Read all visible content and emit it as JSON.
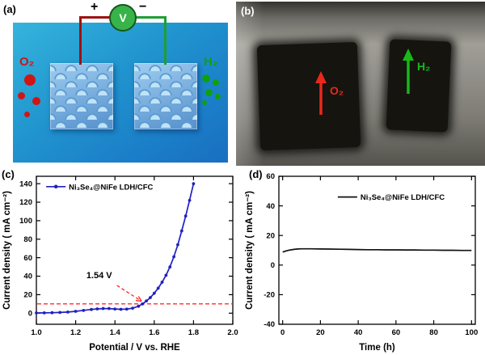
{
  "figure": {
    "panels": {
      "a": {
        "tag": "(a)",
        "voltmeter_label": "V",
        "plus": "+",
        "minus": "−",
        "o2_label": "O₂",
        "h2_label": "H₂"
      },
      "b": {
        "tag": "(b)",
        "o2_label": "O₂",
        "h2_label": "H₂"
      },
      "c": {
        "tag": "(c)"
      },
      "d": {
        "tag": "(d)"
      }
    }
  },
  "colors": {
    "curve_blue": "#2020c0",
    "dashed_red": "#ff0000",
    "stability_black": "#111111",
    "o2_red": "#d01515",
    "h2_green": "#0fa00f",
    "voltmeter_green": "#37b34a",
    "wire_red": "#a01010",
    "wire_green": "#1e9e35",
    "schematic_blue": "#2196cf"
  },
  "chart_data": [
    {
      "panel": "c",
      "type": "line",
      "title": "",
      "xlabel": "Potential / V vs. RHE",
      "ylabel": "Current density ( mA cm⁻²)",
      "xlim": [
        1.0,
        2.0
      ],
      "ylim": [
        -12,
        148
      ],
      "xticks": [
        1.0,
        1.2,
        1.4,
        1.6,
        1.8,
        2.0
      ],
      "xtick_labels": [
        "1.0",
        "1.2",
        "1.4",
        "1.6",
        "1.8",
        "2.0"
      ],
      "yticks": [
        0,
        20,
        40,
        60,
        80,
        100,
        120,
        140
      ],
      "ytick_labels": [
        "0",
        "20",
        "40",
        "60",
        "80",
        "100",
        "120",
        "140"
      ],
      "grid": false,
      "legend": {
        "label": "Ni₃Se₄@NiFe LDH/CFC",
        "color": "#2020c0",
        "marker": true,
        "fx": 0.05,
        "fy": 0.07
      },
      "series": [
        {
          "name": "Ni₃Se₄@NiFe LDH/CFC",
          "color": "#2020c0",
          "marker": true,
          "x": [
            1.0,
            1.04,
            1.08,
            1.12,
            1.16,
            1.2,
            1.24,
            1.28,
            1.31,
            1.34,
            1.37,
            1.4,
            1.43,
            1.46,
            1.49,
            1.52,
            1.54,
            1.56,
            1.58,
            1.6,
            1.62,
            1.64,
            1.66,
            1.68,
            1.7,
            1.72,
            1.74,
            1.76,
            1.78,
            1.8
          ],
          "y": [
            0.2,
            0.3,
            0.5,
            0.8,
            1.2,
            2.0,
            3.0,
            4.0,
            4.6,
            5.0,
            5.0,
            4.5,
            4.2,
            4.4,
            5.4,
            7.5,
            10.0,
            13.2,
            16.8,
            21.5,
            27,
            33.5,
            41,
            50,
            61,
            74,
            89,
            105,
            122,
            140
          ]
        }
      ],
      "hline": {
        "y": 10,
        "color": "#ff0000"
      },
      "annotation": {
        "text": "1.54 V",
        "x": 1.32,
        "y": 38,
        "color": "#2020c0",
        "arrow": {
          "x1": 1.41,
          "y1": 30,
          "x2": 1.535,
          "y2": 13,
          "color": "#ff0000"
        }
      }
    },
    {
      "panel": "d",
      "type": "line",
      "title": "",
      "xlabel": "Time (h)",
      "ylabel": "Current density ( mA cm⁻²)",
      "xlim": [
        -2,
        102
      ],
      "ylim": [
        -40,
        60
      ],
      "xticks": [
        0,
        20,
        40,
        60,
        80,
        100
      ],
      "xtick_labels": [
        "0",
        "20",
        "40",
        "60",
        "80",
        "100"
      ],
      "yticks": [
        -40,
        -20,
        0,
        20,
        40,
        60
      ],
      "ytick_labels": [
        "-40",
        "-20",
        "0",
        "20",
        "40",
        "60"
      ],
      "grid": false,
      "legend": {
        "label": "Ni₃Se₄@NiFe LDH/CFC",
        "color": "#111111",
        "marker": false,
        "fx": 0.3,
        "fy": 0.14
      },
      "series": [
        {
          "name": "Ni₃Se₄@NiFe LDH/CFC",
          "color": "#111111",
          "marker": false,
          "x": [
            0,
            2,
            4,
            6,
            8,
            10,
            15,
            20,
            25,
            30,
            35,
            40,
            45,
            50,
            55,
            60,
            65,
            70,
            75,
            80,
            85,
            90,
            95,
            100
          ],
          "y": [
            8.8,
            9.6,
            10.2,
            10.6,
            10.9,
            11.0,
            11.0,
            10.9,
            10.8,
            10.7,
            10.6,
            10.5,
            10.4,
            10.4,
            10.3,
            10.3,
            10.2,
            10.2,
            10.1,
            10.1,
            10.0,
            10.0,
            9.9,
            9.9
          ]
        }
      ]
    }
  ]
}
